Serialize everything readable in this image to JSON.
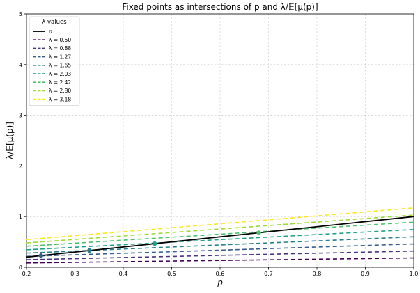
{
  "chart_data": {
    "type": "line",
    "title": "Fixed points as intersections of p and λ/𝔼[μ(p)]",
    "xlabel": "p",
    "ylabel": "λ/𝔼[μ(p)]",
    "xlim": [
      0.2,
      1.0
    ],
    "ylim": [
      0,
      5
    ],
    "xticks": [
      "0.2",
      "0.3",
      "0.4",
      "0.5",
      "0.6",
      "0.7",
      "0.8",
      "0.9",
      "1.0"
    ],
    "yticks": [
      "0",
      "1",
      "2",
      "3",
      "4",
      "5"
    ],
    "grid": true,
    "legend": {
      "title": "λ values",
      "placement": "top-left"
    },
    "series": [
      {
        "name": "p",
        "x": [
          0.2,
          1.0
        ],
        "y": [
          0.2,
          1.0
        ],
        "color": "#000000",
        "style": "solid"
      },
      {
        "name": "λ = 0.50",
        "x": [
          0.2,
          1.0
        ],
        "y": [
          0.085,
          0.185
        ],
        "color": "#440154",
        "style": "dashed"
      },
      {
        "name": "λ = 0.88",
        "x": [
          0.2,
          1.0
        ],
        "y": [
          0.15,
          0.32
        ],
        "color": "#46327e",
        "style": "dashed"
      },
      {
        "name": "λ = 1.27",
        "x": [
          0.2,
          1.0
        ],
        "y": [
          0.215,
          0.46
        ],
        "color": "#365c8d",
        "style": "dashed"
      },
      {
        "name": "λ = 1.65",
        "x": [
          0.2,
          1.0
        ],
        "y": [
          0.28,
          0.6
        ],
        "color": "#277f8e",
        "style": "dashed"
      },
      {
        "name": "λ = 2.03",
        "x": [
          0.2,
          1.0
        ],
        "y": [
          0.345,
          0.745
        ],
        "color": "#1fa187",
        "style": "dashed"
      },
      {
        "name": "λ = 2.42",
        "x": [
          0.2,
          1.0
        ],
        "y": [
          0.415,
          0.89
        ],
        "color": "#4ac16d",
        "style": "dashed"
      },
      {
        "name": "λ = 2.80",
        "x": [
          0.2,
          1.0
        ],
        "y": [
          0.48,
          1.03
        ],
        "color": "#a0da39",
        "style": "dashed"
      },
      {
        "name": "λ = 3.18",
        "x": [
          0.2,
          1.0
        ],
        "y": [
          0.545,
          1.17
        ],
        "color": "#fde725",
        "style": "dashed"
      }
    ],
    "fixed_points": [
      {
        "x": 0.23,
        "y": 0.23,
        "color": "#365c8d"
      },
      {
        "x": 0.33,
        "y": 0.33,
        "color": "#277f8e"
      },
      {
        "x": 0.465,
        "y": 0.465,
        "color": "#1fa187"
      },
      {
        "x": 0.68,
        "y": 0.68,
        "color": "#4ac16d"
      }
    ]
  }
}
